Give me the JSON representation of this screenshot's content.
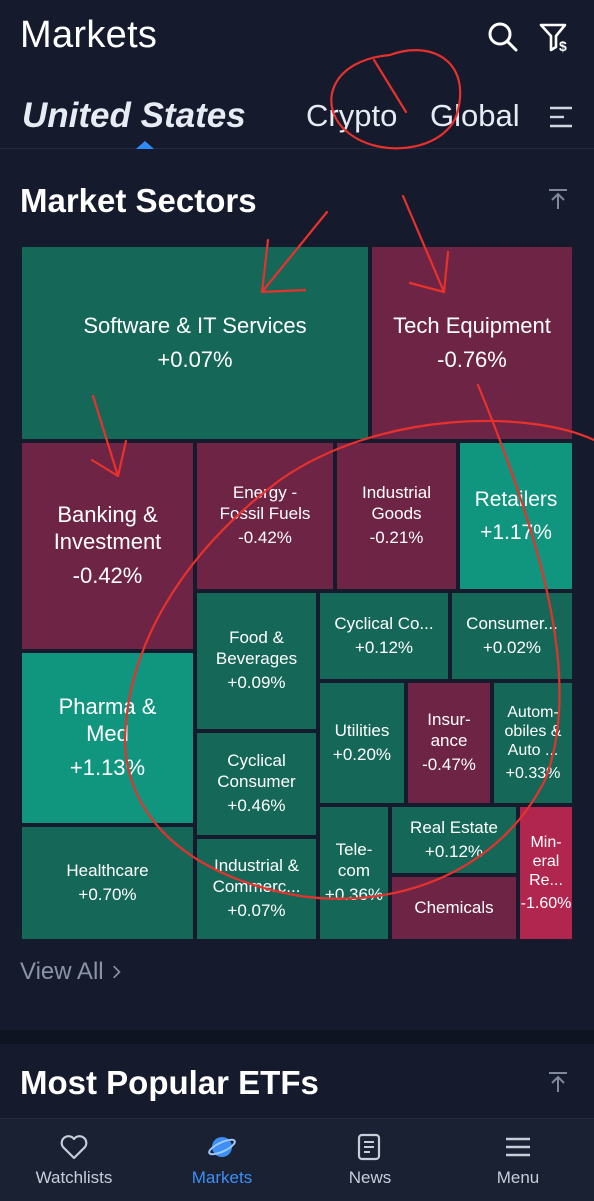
{
  "header": {
    "title": "Markets",
    "search_icon": "search-icon",
    "filter_icon": "funnel-dollar-icon"
  },
  "tabs": [
    {
      "label": "United States",
      "active": true
    },
    {
      "label": "Crypto",
      "active": false
    },
    {
      "label": "Global",
      "active": false
    }
  ],
  "sectors": {
    "title": "Market Sectors",
    "view_all": "View All",
    "tiles": [
      {
        "name": "Software & IT Services",
        "change": "+0.07%",
        "color": "#156858"
      },
      {
        "name": "Tech Equipment",
        "change": "-0.76%",
        "color": "#6e2545"
      },
      {
        "name": "Banking &\nInvestment",
        "change": "-0.42%",
        "color": "#6e2545"
      },
      {
        "name": "Energy -\nFossil Fuels",
        "change": "-0.42%",
        "color": "#6e2545"
      },
      {
        "name": "Industrial\nGoods",
        "change": "-0.21%",
        "color": "#6e2545"
      },
      {
        "name": "Retailers",
        "change": "+1.17%",
        "color": "#10957f"
      },
      {
        "name": "Cyclical Co...",
        "change": "+0.12%",
        "color": "#156858"
      },
      {
        "name": "Consumer...",
        "change": "+0.02%",
        "color": "#156858"
      },
      {
        "name": "Food &\nBeverages",
        "change": "+0.09%",
        "color": "#156858"
      },
      {
        "name": "Pharma &\nMed",
        "change": "+1.13%",
        "color": "#10957f"
      },
      {
        "name": "Utilities",
        "change": "+0.20%",
        "color": "#156858"
      },
      {
        "name": "Insur-\nance",
        "change": "-0.47%",
        "color": "#6e2545"
      },
      {
        "name": "Autom-\nobiles &\nAuto ...",
        "change": "+0.33%",
        "color": "#156858"
      },
      {
        "name": "Cyclical\nConsumer",
        "change": "+0.46%",
        "color": "#156858"
      },
      {
        "name": "Healthcare",
        "change": "+0.70%",
        "color": "#156858"
      },
      {
        "name": "Industrial &\nCommerc...",
        "change": "+0.07%",
        "color": "#156858"
      },
      {
        "name": "Tele-\ncom",
        "change": "+0.36%",
        "color": "#156858"
      },
      {
        "name": "Real Estate",
        "change": "+0.12%",
        "color": "#156858"
      },
      {
        "name": "Chemicals",
        "change": "",
        "color": "#6e2545"
      },
      {
        "name": "Min-\neral\nRe...",
        "change": "-1.60%",
        "color": "#b0264e"
      }
    ]
  },
  "etfs": {
    "title": "Most Popular ETFs"
  },
  "bottom_nav": [
    {
      "label": "Watchlists",
      "icon": "heart-icon",
      "active": false
    },
    {
      "label": "Markets",
      "icon": "planet-icon",
      "active": true
    },
    {
      "label": "News",
      "icon": "newspaper-icon",
      "active": false
    },
    {
      "label": "Menu",
      "icon": "hamburger-icon",
      "active": false
    }
  ],
  "colors": {
    "background": "#151b2c",
    "accent": "#2f8cff",
    "positive": "#156858",
    "negative": "#6e2545",
    "annotation": "#e8312c"
  }
}
